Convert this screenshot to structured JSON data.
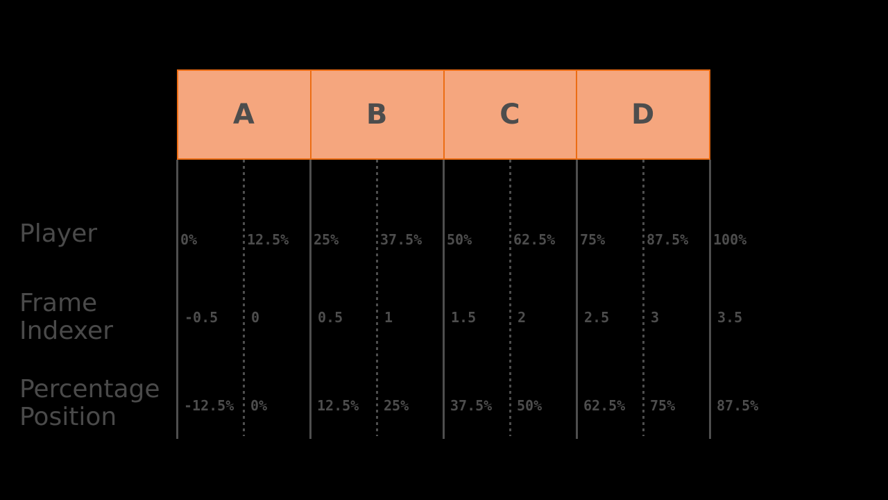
{
  "canvas": {
    "background_color": "#000000",
    "gridline_color": "#4E4E4E",
    "label_color": "#4A4A4A",
    "value_color": "#4D4D4D"
  },
  "segment_strip": {
    "fill_color": "#F5A67E",
    "border_color": "#EC6D14",
    "label_color": "#4D4D4D",
    "segments": [
      {
        "label": "A"
      },
      {
        "label": "B"
      },
      {
        "label": "C"
      },
      {
        "label": "D"
      }
    ]
  },
  "rows": [
    {
      "id": "player",
      "label_lines": [
        "Player"
      ],
      "values": [
        "0%",
        "12.5%",
        "25%",
        "37.5%",
        "50%",
        "62.5%",
        "75%",
        "87.5%",
        "100%"
      ]
    },
    {
      "id": "frame-indexer",
      "label_lines": [
        "Frame",
        "Indexer"
      ],
      "values": [
        "-0.5",
        "0",
        "0.5",
        "1",
        "1.5",
        "2",
        "2.5",
        "3",
        "3.5"
      ]
    },
    {
      "id": "percentage-position",
      "label_lines": [
        "Percentage",
        "Position"
      ],
      "values": [
        "-12.5%",
        "0%",
        "12.5%",
        "25%",
        "37.5%",
        "50%",
        "62.5%",
        "75%",
        "87.5%"
      ]
    }
  ]
}
